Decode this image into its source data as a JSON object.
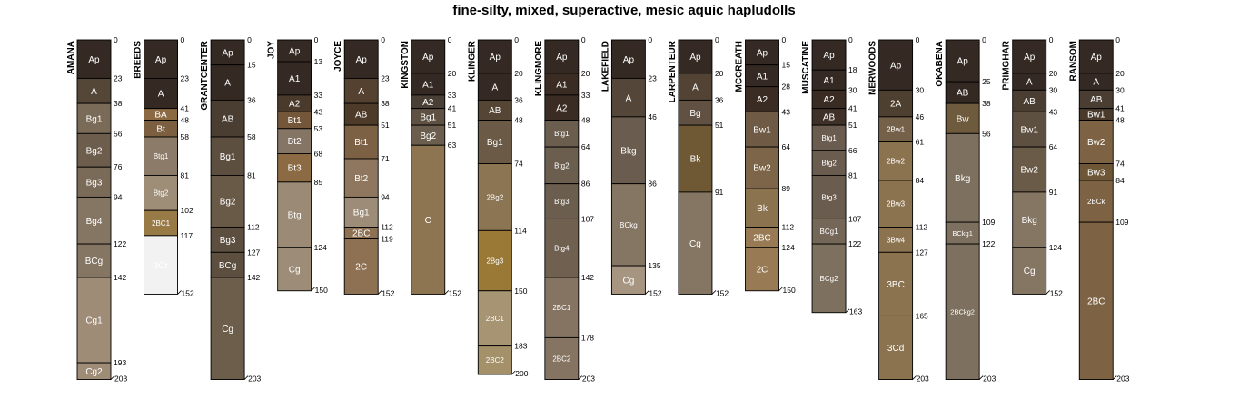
{
  "chart_data": {
    "type": "soil-profile-sketch",
    "title": "fine-silty, mixed, superactive, mesic aquic hapludolls",
    "depth_units": "cm",
    "max_depth": 203,
    "profiles": [
      {
        "name": "AMANA",
        "bottom": 203,
        "horizons": [
          {
            "name": "Ap",
            "top": 0,
            "bottom": 23,
            "color": "#342a23"
          },
          {
            "name": "A",
            "top": 23,
            "bottom": 38,
            "color": "#544738"
          },
          {
            "name": "Bg1",
            "top": 38,
            "bottom": 56,
            "color": "#7a6a58"
          },
          {
            "name": "Bg2",
            "top": 56,
            "bottom": 76,
            "color": "#6c5d4c"
          },
          {
            "name": "Bg3",
            "top": 76,
            "bottom": 94,
            "color": "#7a6a58"
          },
          {
            "name": "Bg4",
            "top": 94,
            "bottom": 122,
            "color": "#857563"
          },
          {
            "name": "BCg",
            "top": 122,
            "bottom": 142,
            "color": "#857563"
          },
          {
            "name": "Cg1",
            "top": 142,
            "bottom": 193,
            "color": "#9e8c77"
          },
          {
            "name": "Cg2",
            "top": 193,
            "bottom": 203,
            "color": "#9e8c77"
          }
        ]
      },
      {
        "name": "BREEDS",
        "bottom": 152,
        "horizons": [
          {
            "name": "Ap",
            "top": 0,
            "bottom": 23,
            "color": "#342a23"
          },
          {
            "name": "A",
            "top": 23,
            "bottom": 41,
            "color": "#342a23"
          },
          {
            "name": "BA",
            "top": 41,
            "bottom": 48,
            "color": "#8b6a43"
          },
          {
            "name": "Bt",
            "top": 48,
            "bottom": 58,
            "color": "#7c5f40"
          },
          {
            "name": "Btg1",
            "top": 58,
            "bottom": 81,
            "color": "#8b7b68"
          },
          {
            "name": "Btg2",
            "top": 81,
            "bottom": 102,
            "color": "#9e8e78"
          },
          {
            "name": "2BC1",
            "top": 102,
            "bottom": 117,
            "color": "#987a47"
          },
          {
            "name": "3Cr",
            "top": 117,
            "bottom": 152,
            "color": "#f2f2f2"
          }
        ]
      },
      {
        "name": "GRANTCENTER",
        "bottom": 203,
        "horizons": [
          {
            "name": "Ap",
            "top": 0,
            "bottom": 15,
            "color": "#342a23"
          },
          {
            "name": "A",
            "top": 15,
            "bottom": 36,
            "color": "#342a23"
          },
          {
            "name": "AB",
            "top": 36,
            "bottom": 58,
            "color": "#4a3d31"
          },
          {
            "name": "Bg1",
            "top": 58,
            "bottom": 81,
            "color": "#5d4f3f"
          },
          {
            "name": "Bg2",
            "top": 81,
            "bottom": 112,
            "color": "#695a48"
          },
          {
            "name": "Bg3",
            "top": 112,
            "bottom": 127,
            "color": "#5d4f3f"
          },
          {
            "name": "BCg",
            "top": 127,
            "bottom": 142,
            "color": "#5d4f3f"
          },
          {
            "name": "Cg",
            "top": 142,
            "bottom": 203,
            "color": "#6c5e4b"
          }
        ]
      },
      {
        "name": "JOY",
        "bottom": 150,
        "horizons": [
          {
            "name": "Ap",
            "top": 0,
            "bottom": 13,
            "color": "#342a23"
          },
          {
            "name": "A1",
            "top": 13,
            "bottom": 33,
            "color": "#342a23"
          },
          {
            "name": "A2",
            "top": 33,
            "bottom": 43,
            "color": "#4a3a2c"
          },
          {
            "name": "Bt1",
            "top": 43,
            "bottom": 53,
            "color": "#74573a"
          },
          {
            "name": "Bt2",
            "top": 53,
            "bottom": 68,
            "color": "#847565"
          },
          {
            "name": "Bt3",
            "top": 68,
            "bottom": 85,
            "color": "#8c6a43"
          },
          {
            "name": "Btg",
            "top": 85,
            "bottom": 124,
            "color": "#9b8a75"
          },
          {
            "name": "Cg",
            "top": 124,
            "bottom": 150,
            "color": "#9d8d78"
          }
        ]
      },
      {
        "name": "JOYCE",
        "bottom": 152,
        "horizons": [
          {
            "name": "Ap",
            "top": 0,
            "bottom": 23,
            "color": "#342a23"
          },
          {
            "name": "A",
            "top": 23,
            "bottom": 38,
            "color": "#544130"
          },
          {
            "name": "AB",
            "top": 38,
            "bottom": 51,
            "color": "#4d3a29"
          },
          {
            "name": "Bt1",
            "top": 51,
            "bottom": 71,
            "color": "#7c6144"
          },
          {
            "name": "Bt2",
            "top": 71,
            "bottom": 94,
            "color": "#8e775e"
          },
          {
            "name": "Bg1",
            "top": 94,
            "bottom": 112,
            "color": "#9d8d78"
          },
          {
            "name": "2BC",
            "top": 112,
            "bottom": 119,
            "color": "#8e7152"
          },
          {
            "name": "2C",
            "top": 119,
            "bottom": 152,
            "color": "#8e7152"
          }
        ]
      },
      {
        "name": "KINGSTON",
        "bottom": 152,
        "horizons": [
          {
            "name": "Ap",
            "top": 0,
            "bottom": 20,
            "color": "#342a23"
          },
          {
            "name": "A1",
            "top": 20,
            "bottom": 33,
            "color": "#342a23"
          },
          {
            "name": "A2",
            "top": 33,
            "bottom": 41,
            "color": "#4a3f35"
          },
          {
            "name": "Bg1",
            "top": 41,
            "bottom": 51,
            "color": "#5e5143"
          },
          {
            "name": "Bg2",
            "top": 51,
            "bottom": 63,
            "color": "#6c5e4e"
          },
          {
            "name": "C",
            "top": 63,
            "bottom": 152,
            "color": "#8c7550"
          }
        ]
      },
      {
        "name": "KLINGER",
        "bottom": 200,
        "horizons": [
          {
            "name": "Ap",
            "top": 0,
            "bottom": 20,
            "color": "#342a23"
          },
          {
            "name": "A",
            "top": 20,
            "bottom": 36,
            "color": "#342a23"
          },
          {
            "name": "AB",
            "top": 36,
            "bottom": 48,
            "color": "#544534"
          },
          {
            "name": "Bg1",
            "top": 48,
            "bottom": 74,
            "color": "#6a5a46"
          },
          {
            "name": "2Bg2",
            "top": 74,
            "bottom": 114,
            "color": "#8c7552"
          },
          {
            "name": "2Bg3",
            "top": 114,
            "bottom": 150,
            "color": "#9a7836"
          },
          {
            "name": "2BC1",
            "top": 150,
            "bottom": 183,
            "color": "#a69473"
          },
          {
            "name": "2BC2",
            "top": 183,
            "bottom": 200,
            "color": "#a49169"
          }
        ]
      },
      {
        "name": "KLINGMORE",
        "bottom": 203,
        "horizons": [
          {
            "name": "Ap",
            "top": 0,
            "bottom": 20,
            "color": "#342a23"
          },
          {
            "name": "A1",
            "top": 20,
            "bottom": 33,
            "color": "#3a2c22"
          },
          {
            "name": "A2",
            "top": 33,
            "bottom": 48,
            "color": "#3a2c22"
          },
          {
            "name": "Btg1",
            "top": 48,
            "bottom": 64,
            "color": "#6c5e4f"
          },
          {
            "name": "Btg2",
            "top": 64,
            "bottom": 86,
            "color": "#6c5e4f"
          },
          {
            "name": "Btg3",
            "top": 86,
            "bottom": 107,
            "color": "#6c5e4f"
          },
          {
            "name": "Btg4",
            "top": 107,
            "bottom": 142,
            "color": "#706050"
          },
          {
            "name": "2BC1",
            "top": 142,
            "bottom": 178,
            "color": "#857461"
          },
          {
            "name": "2BC2",
            "top": 178,
            "bottom": 203,
            "color": "#857461"
          }
        ]
      },
      {
        "name": "LAKEFIELD",
        "bottom": 152,
        "horizons": [
          {
            "name": "Ap",
            "top": 0,
            "bottom": 23,
            "color": "#342a23"
          },
          {
            "name": "A",
            "top": 23,
            "bottom": 46,
            "color": "#544638"
          },
          {
            "name": "Bkg",
            "top": 46,
            "bottom": 86,
            "color": "#6a5d4f"
          },
          {
            "name": "BCkg",
            "top": 86,
            "bottom": 135,
            "color": "#857563"
          },
          {
            "name": "Cg",
            "top": 135,
            "bottom": 152,
            "color": "#a69580"
          }
        ]
      },
      {
        "name": "LARPENTEUR",
        "bottom": 152,
        "horizons": [
          {
            "name": "Ap",
            "top": 0,
            "bottom": 20,
            "color": "#342a23"
          },
          {
            "name": "A",
            "top": 20,
            "bottom": 36,
            "color": "#524334"
          },
          {
            "name": "Bg",
            "top": 36,
            "bottom": 51,
            "color": "#605142"
          },
          {
            "name": "Bk",
            "top": 51,
            "bottom": 91,
            "color": "#6e5934"
          },
          {
            "name": "Cg",
            "top": 91,
            "bottom": 152,
            "color": "#857563"
          }
        ]
      },
      {
        "name": "MCCREATH",
        "bottom": 150,
        "horizons": [
          {
            "name": "Ap",
            "top": 0,
            "bottom": 15,
            "color": "#342a23"
          },
          {
            "name": "A1",
            "top": 15,
            "bottom": 28,
            "color": "#342a23"
          },
          {
            "name": "A2",
            "top": 28,
            "bottom": 43,
            "color": "#3a2c22"
          },
          {
            "name": "Bw1",
            "top": 43,
            "bottom": 64,
            "color": "#6e5a45"
          },
          {
            "name": "Bw2",
            "top": 64,
            "bottom": 89,
            "color": "#7d6549"
          },
          {
            "name": "Bk",
            "top": 89,
            "bottom": 112,
            "color": "#8c7350"
          },
          {
            "name": "2BC",
            "top": 112,
            "bottom": 124,
            "color": "#987a55"
          },
          {
            "name": "2C",
            "top": 124,
            "bottom": 150,
            "color": "#987a55"
          }
        ]
      },
      {
        "name": "MUSCATINE",
        "bottom": 163,
        "horizons": [
          {
            "name": "Ap",
            "top": 0,
            "bottom": 18,
            "color": "#342a23"
          },
          {
            "name": "A1",
            "top": 18,
            "bottom": 30,
            "color": "#342a23"
          },
          {
            "name": "A2",
            "top": 30,
            "bottom": 41,
            "color": "#3a2c22"
          },
          {
            "name": "AB",
            "top": 41,
            "bottom": 51,
            "color": "#3f3128"
          },
          {
            "name": "Btg1",
            "top": 51,
            "bottom": 66,
            "color": "#6a5c4e"
          },
          {
            "name": "Btg2",
            "top": 66,
            "bottom": 81,
            "color": "#6a5c4e"
          },
          {
            "name": "Btg3",
            "top": 81,
            "bottom": 107,
            "color": "#6a5c4e"
          },
          {
            "name": "BCg1",
            "top": 107,
            "bottom": 122,
            "color": "#756758"
          },
          {
            "name": "BCg2",
            "top": 122,
            "bottom": 163,
            "color": "#7d705e"
          }
        ]
      },
      {
        "name": "NERWOODS",
        "bottom": 203,
        "horizons": [
          {
            "name": "Ap",
            "top": 0,
            "bottom": 30,
            "color": "#342a23"
          },
          {
            "name": "2A",
            "top": 30,
            "bottom": 46,
            "color": "#4e4030"
          },
          {
            "name": "2Bw1",
            "top": 46,
            "bottom": 61,
            "color": "#75604a"
          },
          {
            "name": "2Bw2",
            "top": 61,
            "bottom": 84,
            "color": "#8c7350"
          },
          {
            "name": "2Bw3",
            "top": 84,
            "bottom": 112,
            "color": "#8c7350"
          },
          {
            "name": "3Bw4",
            "top": 112,
            "bottom": 127,
            "color": "#8c7350"
          },
          {
            "name": "3BC",
            "top": 127,
            "bottom": 165,
            "color": "#8c7350"
          },
          {
            "name": "3Cd",
            "top": 165,
            "bottom": 203,
            "color": "#8c7350"
          }
        ]
      },
      {
        "name": "OKABENA",
        "bottom": 203,
        "horizons": [
          {
            "name": "Ap",
            "top": 0,
            "bottom": 25,
            "color": "#342a23"
          },
          {
            "name": "AB",
            "top": 25,
            "bottom": 38,
            "color": "#342a23"
          },
          {
            "name": "Bw",
            "top": 38,
            "bottom": 56,
            "color": "#6e5a3d"
          },
          {
            "name": "Bkg",
            "top": 56,
            "bottom": 109,
            "color": "#7d705e"
          },
          {
            "name": "BCkg1",
            "top": 109,
            "bottom": 122,
            "color": "#7d705e"
          },
          {
            "name": "2BCkg2",
            "top": 122,
            "bottom": 203,
            "color": "#7d705e"
          }
        ]
      },
      {
        "name": "PRIMGHAR",
        "bottom": 152,
        "horizons": [
          {
            "name": "Ap",
            "top": 0,
            "bottom": 20,
            "color": "#342a23"
          },
          {
            "name": "A",
            "top": 20,
            "bottom": 30,
            "color": "#342a23"
          },
          {
            "name": "AB",
            "top": 30,
            "bottom": 43,
            "color": "#4a3d31"
          },
          {
            "name": "Bw1",
            "top": 43,
            "bottom": 64,
            "color": "#5e5040"
          },
          {
            "name": "Bw2",
            "top": 64,
            "bottom": 91,
            "color": "#6a5a48"
          },
          {
            "name": "Bkg",
            "top": 91,
            "bottom": 124,
            "color": "#857563"
          },
          {
            "name": "Cg",
            "top": 124,
            "bottom": 152,
            "color": "#857563"
          }
        ]
      },
      {
        "name": "RANSOM",
        "bottom": 203,
        "horizons": [
          {
            "name": "Ap",
            "top": 0,
            "bottom": 20,
            "color": "#342a23"
          },
          {
            "name": "A",
            "top": 20,
            "bottom": 30,
            "color": "#342a23"
          },
          {
            "name": "AB",
            "top": 30,
            "bottom": 41,
            "color": "#4a3d31"
          },
          {
            "name": "Bw1",
            "top": 41,
            "bottom": 48,
            "color": "#4a3a2c"
          },
          {
            "name": "Bw2",
            "top": 48,
            "bottom": 74,
            "color": "#7d6343"
          },
          {
            "name": "Bw3",
            "top": 74,
            "bottom": 84,
            "color": "#6e5737"
          },
          {
            "name": "2BCk",
            "top": 84,
            "bottom": 109,
            "color": "#7d6343"
          },
          {
            "name": "2BC",
            "top": 109,
            "bottom": 203,
            "color": "#7d6343"
          }
        ]
      }
    ]
  }
}
